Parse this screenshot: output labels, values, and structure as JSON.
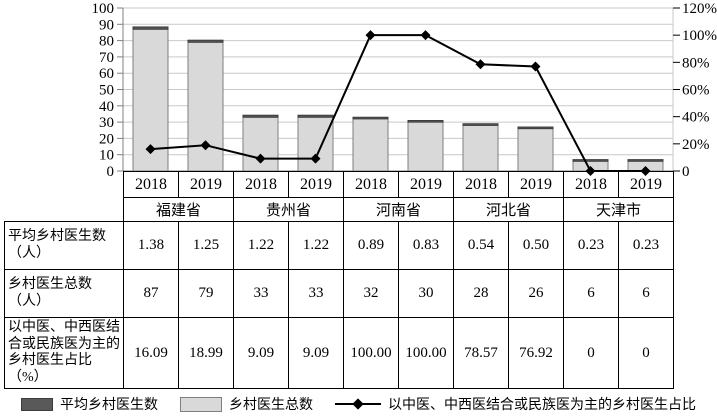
{
  "chart": {
    "left_axis_labels": [
      "0",
      "10",
      "20",
      "30",
      "40",
      "50",
      "60",
      "70",
      "80",
      "90",
      "100"
    ],
    "right_axis_labels": [
      "0",
      "20%",
      "40%",
      "60%",
      "80%",
      "100%",
      "120%"
    ]
  },
  "chart_data": {
    "type": "bar",
    "subtype": "stacked-bars-with-line",
    "categories": [
      "2018",
      "2019",
      "2018",
      "2019",
      "2018",
      "2019",
      "2018",
      "2019",
      "2018",
      "2019"
    ],
    "group_labels": [
      "福建省",
      "贵州省",
      "河南省",
      "河北省",
      "天津市"
    ],
    "left_axis": {
      "min": 0,
      "max": 100,
      "step": 10
    },
    "right_axis": {
      "min": 0,
      "max": 120,
      "step": 20,
      "format": "percent"
    },
    "grid": true,
    "legend_position": "bottom",
    "series": [
      {
        "name": "平均乡村医生数",
        "type": "bar-stack-top",
        "axis": "left",
        "color": "#595959",
        "values": [
          1.38,
          1.25,
          1.22,
          1.22,
          0.89,
          0.83,
          0.54,
          0.5,
          0.23,
          0.23
        ]
      },
      {
        "name": "乡村医生总数",
        "type": "bar-stack-base",
        "axis": "left",
        "color": "#d9d9d9",
        "values": [
          87,
          79,
          33,
          33,
          32,
          30,
          28,
          26,
          6,
          6
        ]
      },
      {
        "name": "以中医、中西医结合或民族医为主的乡村医生占比",
        "type": "line",
        "axis": "right",
        "color": "#000000",
        "marker": "diamond",
        "values": [
          16.09,
          18.99,
          9.09,
          9.09,
          100,
          100,
          78.57,
          76.92,
          0,
          0
        ]
      }
    ]
  },
  "table": {
    "year_row": [
      "2018",
      "2019",
      "2018",
      "2019",
      "2018",
      "2019",
      "2018",
      "2019",
      "2018",
      "2019"
    ],
    "province_row": [
      "福建省",
      "贵州省",
      "河南省",
      "河北省",
      "天津市"
    ],
    "rows": [
      {
        "label": "平均乡村医生数（人）",
        "values": [
          "1.38",
          "1.25",
          "1.22",
          "1.22",
          "0.89",
          "0.83",
          "0.54",
          "0.50",
          "0.23",
          "0.23"
        ]
      },
      {
        "label": "乡村医生总数（人）",
        "values": [
          "87",
          "79",
          "33",
          "33",
          "32",
          "30",
          "28",
          "26",
          "6",
          "6"
        ]
      },
      {
        "label": "以中医、中西医结合或民族医为主的乡村医生占比（%）",
        "values": [
          "16.09",
          "18.99",
          "9.09",
          "9.09",
          "100.00",
          "100.00",
          "78.57",
          "76.92",
          "0",
          "0"
        ]
      }
    ]
  },
  "legend": {
    "items": [
      {
        "label": "平均乡村医生数",
        "swatch": "dark-bar",
        "color": "#595959"
      },
      {
        "label": "乡村医生总数",
        "swatch": "light-bar",
        "color": "#d9d9d9"
      },
      {
        "label": "以中医、中西医结合或民族医为主的乡村医生占比",
        "swatch": "line-diamond",
        "color": "#000000"
      }
    ]
  },
  "style": {
    "gridline_color": "#c9c9c9",
    "axis_color": "#808080",
    "bar_light_stroke": "#7f7f7f",
    "bar_dark_stroke": "#3d3d3d",
    "table_border_color": "#000000"
  }
}
